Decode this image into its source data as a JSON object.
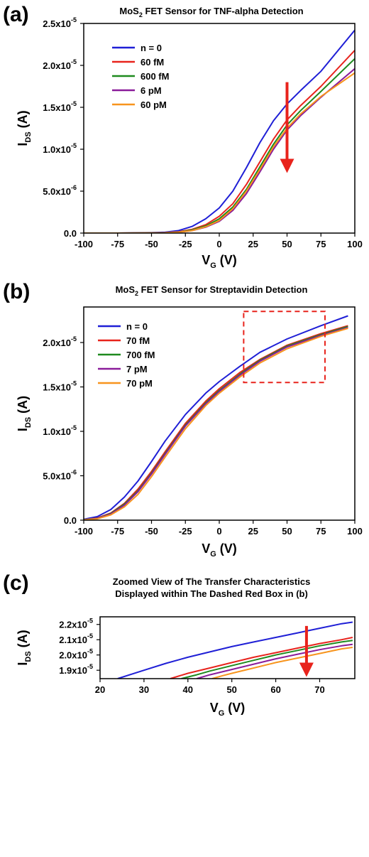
{
  "chart_data": [
    {
      "panel": "(a)",
      "type": "line",
      "title": "MoS2 FET Sensor for TNF-alpha Detection",
      "title_parts": [
        "MoS",
        "2",
        " FET Sensor for TNF-alpha Detection"
      ],
      "xlabel": "V_G (V)",
      "xlabel_parts": [
        "V",
        "G",
        " (V)"
      ],
      "ylabel": "I_DS (A)",
      "ylabel_parts": [
        "I",
        "DS",
        " (A)"
      ],
      "xlim": [
        -100,
        100
      ],
      "ylim": [
        0,
        2.5e-05
      ],
      "xticks": [
        -100,
        -75,
        -50,
        -25,
        0,
        25,
        50,
        75,
        100
      ],
      "yticks": [
        0,
        5e-06,
        1e-05,
        1.5e-05,
        2e-05,
        2.5e-05
      ],
      "ytick_labels": [
        [
          "0.0",
          ""
        ],
        [
          "5.0x10",
          "-6"
        ],
        [
          "1.0x10",
          "-5"
        ],
        [
          "1.5x10",
          "-5"
        ],
        [
          "2.0x10",
          "-5"
        ],
        [
          "2.5x10",
          "-5"
        ]
      ],
      "legend_position": "top-left",
      "arrow": {
        "x": 50,
        "from_y": 1.8e-05,
        "to_y": 7.5e-06,
        "color": "#e8231c"
      },
      "grid": false,
      "series": [
        {
          "name": "n = 0",
          "color": "#1f1fd6",
          "x": [
            -100,
            -75,
            -50,
            -40,
            -30,
            -20,
            -10,
            0,
            10,
            20,
            30,
            40,
            50,
            60,
            75,
            100
          ],
          "values": [
            0,
            0,
            5e-08,
            1e-07,
            3e-07,
            8e-07,
            1.7e-06,
            3e-06,
            5e-06,
            7.8e-06,
            1.08e-05,
            1.34e-05,
            1.54e-05,
            1.7e-05,
            1.93e-05,
            2.42e-05
          ]
        },
        {
          "name": "60 fM",
          "color": "#e8231c",
          "x": [
            -100,
            -75,
            -50,
            -40,
            -30,
            -20,
            -10,
            0,
            10,
            20,
            30,
            40,
            50,
            60,
            75,
            100
          ],
          "values": [
            0,
            0,
            2e-08,
            5e-08,
            1.5e-07,
            4.5e-07,
            1e-06,
            2e-06,
            3.5e-06,
            5.8e-06,
            8.5e-06,
            1.12e-05,
            1.35e-05,
            1.52e-05,
            1.75e-05,
            2.18e-05
          ]
        },
        {
          "name": "600 fM",
          "color": "#1e8a1e",
          "x": [
            -100,
            -75,
            -50,
            -40,
            -30,
            -20,
            -10,
            0,
            10,
            20,
            30,
            40,
            50,
            60,
            75,
            100
          ],
          "values": [
            0,
            0,
            2e-08,
            4e-08,
            1.2e-07,
            3.8e-07,
            8.5e-07,
            1.7e-06,
            3.1e-06,
            5.2e-06,
            7.9e-06,
            1.06e-05,
            1.29e-05,
            1.46e-05,
            1.69e-05,
            2.08e-05
          ]
        },
        {
          "name": "6 pM",
          "color": "#8a1c9a",
          "x": [
            -100,
            -75,
            -50,
            -40,
            -30,
            -20,
            -10,
            0,
            10,
            20,
            30,
            40,
            50,
            60,
            75,
            100
          ],
          "values": [
            0,
            0,
            1e-08,
            3e-08,
            1e-07,
            3e-07,
            7e-07,
            1.4e-06,
            2.7e-06,
            4.7e-06,
            7.3e-06,
            1e-05,
            1.23e-05,
            1.4e-05,
            1.62e-05,
            1.96e-05
          ]
        },
        {
          "name": "60 pM",
          "color": "#f7941d",
          "x": [
            -100,
            -75,
            -50,
            -40,
            -30,
            -20,
            -10,
            0,
            10,
            20,
            30,
            40,
            50,
            60,
            75,
            100
          ],
          "values": [
            0,
            0,
            1e-08,
            3e-08,
            1e-07,
            3e-07,
            7.5e-07,
            1.5e-06,
            2.9e-06,
            5e-06,
            7.6e-06,
            1.03e-05,
            1.25e-05,
            1.42e-05,
            1.63e-05,
            1.91e-05
          ]
        }
      ]
    },
    {
      "panel": "(b)",
      "type": "line",
      "title": "MoS2 FET Sensor for Streptavidin Detection",
      "title_parts": [
        "MoS",
        "2",
        " FET Sensor for Streptavidin Detection"
      ],
      "xlabel": "V_G (V)",
      "xlabel_parts": [
        "V",
        "G",
        " (V)"
      ],
      "ylabel": "I_DS (A)",
      "ylabel_parts": [
        "I",
        "DS",
        " (A)"
      ],
      "xlim": [
        -100,
        100
      ],
      "ylim": [
        0,
        2.4e-05
      ],
      "xticks": [
        -100,
        -75,
        -50,
        -25,
        0,
        25,
        50,
        75,
        100
      ],
      "yticks": [
        0,
        5e-06,
        1e-05,
        1.5e-05,
        2e-05
      ],
      "ytick_labels": [
        [
          "0.0",
          ""
        ],
        [
          "5.0x10",
          "-6"
        ],
        [
          "1.0x10",
          "-5"
        ],
        [
          "1.5x10",
          "-5"
        ],
        [
          "2.0x10",
          "-5"
        ]
      ],
      "legend_position": "top-left",
      "zoom_box": {
        "x": [
          18,
          78
        ],
        "y": [
          1.55e-05,
          2.35e-05
        ],
        "color": "#e8231c"
      },
      "grid": false,
      "series": [
        {
          "name": "n = 0",
          "color": "#1f1fd6",
          "x": [
            -100,
            -90,
            -80,
            -70,
            -60,
            -50,
            -40,
            -25,
            -10,
            0,
            15,
            30,
            50,
            75,
            95
          ],
          "values": [
            1e-07,
            4e-07,
            1.2e-06,
            2.6e-06,
            4.4e-06,
            6.6e-06,
            8.9e-06,
            1.19e-05,
            1.43e-05,
            1.56e-05,
            1.73e-05,
            1.89e-05,
            2.04e-05,
            2.19e-05,
            2.3e-05
          ]
        },
        {
          "name": "70 fM",
          "color": "#e8231c",
          "x": [
            -100,
            -90,
            -80,
            -70,
            -60,
            -50,
            -40,
            -25,
            -10,
            0,
            15,
            30,
            50,
            75,
            95
          ],
          "values": [
            5e-08,
            2.5e-07,
            8e-07,
            1.9e-06,
            3.5e-06,
            5.5e-06,
            7.7e-06,
            1.09e-05,
            1.34e-05,
            1.48e-05,
            1.66e-05,
            1.81e-05,
            1.97e-05,
            2.1e-05,
            2.19e-05
          ]
        },
        {
          "name": "700 fM",
          "color": "#1e8a1e",
          "x": [
            -100,
            -90,
            -80,
            -70,
            -60,
            -50,
            -40,
            -25,
            -10,
            0,
            15,
            30,
            50,
            75,
            95
          ],
          "values": [
            5e-08,
            2.2e-07,
            7.5e-07,
            1.8e-06,
            3.3e-06,
            5.3e-06,
            7.5e-06,
            1.07e-05,
            1.32e-05,
            1.46e-05,
            1.64e-05,
            1.8e-05,
            1.96e-05,
            2.09e-05,
            2.18e-05
          ]
        },
        {
          "name": "7 pM",
          "color": "#8a1c9a",
          "x": [
            -100,
            -90,
            -80,
            -70,
            -60,
            -50,
            -40,
            -25,
            -10,
            0,
            15,
            30,
            50,
            75,
            95
          ],
          "values": [
            4e-08,
            2e-07,
            7e-07,
            1.7e-06,
            3.2e-06,
            5.2e-06,
            7.4e-06,
            1.06e-05,
            1.31e-05,
            1.45e-05,
            1.63e-05,
            1.79e-05,
            1.95e-05,
            2.08e-05,
            2.17e-05
          ]
        },
        {
          "name": "70 pM",
          "color": "#f7941d",
          "x": [
            -100,
            -90,
            -80,
            -70,
            -60,
            -50,
            -40,
            -25,
            -10,
            0,
            15,
            30,
            50,
            75,
            95
          ],
          "values": [
            3e-08,
            1.5e-07,
            6e-07,
            1.5e-06,
            2.9e-06,
            4.9e-06,
            7.1e-06,
            1.03e-05,
            1.29e-05,
            1.43e-05,
            1.61e-05,
            1.77e-05,
            1.93e-05,
            2.07e-05,
            2.16e-05
          ]
        }
      ]
    },
    {
      "panel": "(c)",
      "type": "line",
      "title": "Zoomed View of The Transfer Characteristics Displayed within The Dashed Red Box in (b)",
      "title_lines": [
        "Zoomed View of The Transfer Characteristics",
        "Displayed within The Dashed Red Box in (b)"
      ],
      "xlabel": "V_G (V)",
      "xlabel_parts": [
        "V",
        "G",
        " (V)"
      ],
      "ylabel": "I_DS (A)",
      "ylabel_parts": [
        "I",
        "DS",
        " (A)"
      ],
      "xlim": [
        20,
        78
      ],
      "ylim": [
        1.845e-05,
        2.25e-05
      ],
      "xticks": [
        20,
        30,
        40,
        50,
        60,
        70
      ],
      "yticks": [
        1.9e-05,
        2e-05,
        2.1e-05,
        2.2e-05
      ],
      "ytick_labels": [
        [
          "1.9x10",
          "-5"
        ],
        [
          "2.0x10",
          "-5"
        ],
        [
          "2.1x10",
          "-5"
        ],
        [
          "2.2x10",
          "-5"
        ]
      ],
      "arrow": {
        "x": 67,
        "from_y": 2.19e-05,
        "to_y": 1.875e-05,
        "color": "#e8231c"
      },
      "grid": false,
      "series": [
        {
          "name": "n = 0",
          "color": "#1f1fd6",
          "x": [
            24,
            30,
            35,
            40,
            45,
            50,
            55,
            60,
            65,
            70,
            75,
            77.5
          ],
          "values": [
            1.845e-05,
            1.9e-05,
            1.945e-05,
            1.985e-05,
            2.02e-05,
            2.055e-05,
            2.085e-05,
            2.115e-05,
            2.145e-05,
            2.175e-05,
            2.205e-05,
            2.215e-05
          ]
        },
        {
          "name": "70 fM",
          "color": "#e8231c",
          "x": [
            36,
            40,
            45,
            50,
            55,
            60,
            65,
            70,
            75,
            77.5
          ],
          "values": [
            1.845e-05,
            1.88e-05,
            1.915e-05,
            1.95e-05,
            1.985e-05,
            2.015e-05,
            2.045e-05,
            2.075e-05,
            2.1e-05,
            2.115e-05
          ]
        },
        {
          "name": "700 fM",
          "color": "#1e8a1e",
          "x": [
            38.5,
            42,
            45,
            50,
            55,
            60,
            65,
            70,
            75,
            77.5
          ],
          "values": [
            1.845e-05,
            1.87e-05,
            1.895e-05,
            1.93e-05,
            1.965e-05,
            2e-05,
            2.03e-05,
            2.06e-05,
            2.085e-05,
            2.095e-05
          ]
        },
        {
          "name": "7 pM",
          "color": "#8a1c9a",
          "x": [
            42,
            45,
            50,
            55,
            60,
            65,
            70,
            75,
            77.5
          ],
          "values": [
            1.845e-05,
            1.87e-05,
            1.905e-05,
            1.94e-05,
            1.975e-05,
            2.005e-05,
            2.035e-05,
            2.06e-05,
            2.07e-05
          ]
        },
        {
          "name": "70 pM",
          "color": "#f7941d",
          "x": [
            45.5,
            48,
            50,
            55,
            60,
            65,
            70,
            75,
            77.5
          ],
          "values": [
            1.845e-05,
            1.865e-05,
            1.88e-05,
            1.915e-05,
            1.95e-05,
            1.98e-05,
            2.01e-05,
            2.04e-05,
            2.05e-05
          ]
        }
      ]
    }
  ]
}
